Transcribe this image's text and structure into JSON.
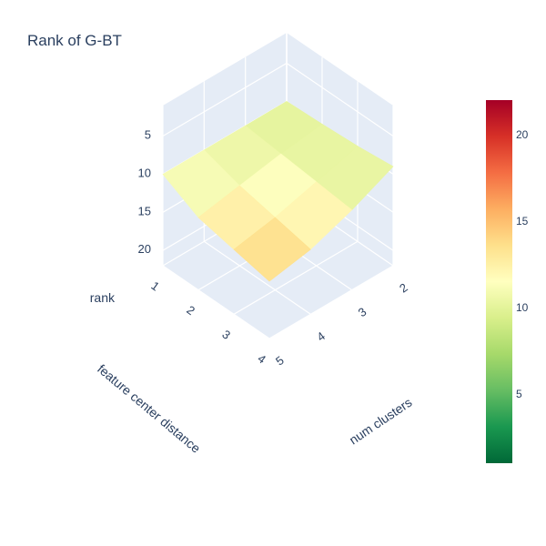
{
  "chart_data": {
    "type": "surface",
    "title": "Rank of G-BT",
    "x_axis": {
      "label": "feature center distance",
      "ticks": [
        "1",
        "2",
        "3",
        "4"
      ],
      "range": [
        1,
        4
      ]
    },
    "y_axis": {
      "label": "num clusters",
      "ticks": [
        "2",
        "3",
        "4",
        "5"
      ],
      "range": [
        2,
        5
      ]
    },
    "z_axis": {
      "label": "rank",
      "ticks": [
        "5",
        "10",
        "15",
        "20"
      ],
      "range": [
        22,
        1
      ],
      "reversed": true
    },
    "x": [
      1,
      2,
      3,
      4
    ],
    "y": [
      2,
      3,
      4,
      5
    ],
    "z": [
      [
        10.0,
        10.0,
        10.0,
        10.0
      ],
      [
        9.8,
        10.5,
        11.5,
        12.5
      ],
      [
        9.5,
        11.0,
        12.5,
        13.5
      ],
      [
        9.0,
        11.5,
        13.5,
        14.5
      ]
    ],
    "colorscale": "RdYlGn",
    "colorscale_stops": [
      "#006837",
      "#1a9850",
      "#66bd63",
      "#a6d96a",
      "#d9ef8b",
      "#ffffbf",
      "#fee08b",
      "#fdae61",
      "#f46d43",
      "#d73027",
      "#a50026"
    ],
    "colorbar": {
      "ticks": [
        "5",
        "10",
        "15",
        "20"
      ],
      "range": [
        1,
        22
      ],
      "placement": "right"
    },
    "scene_background": "#e5ecf6",
    "grid": true
  }
}
